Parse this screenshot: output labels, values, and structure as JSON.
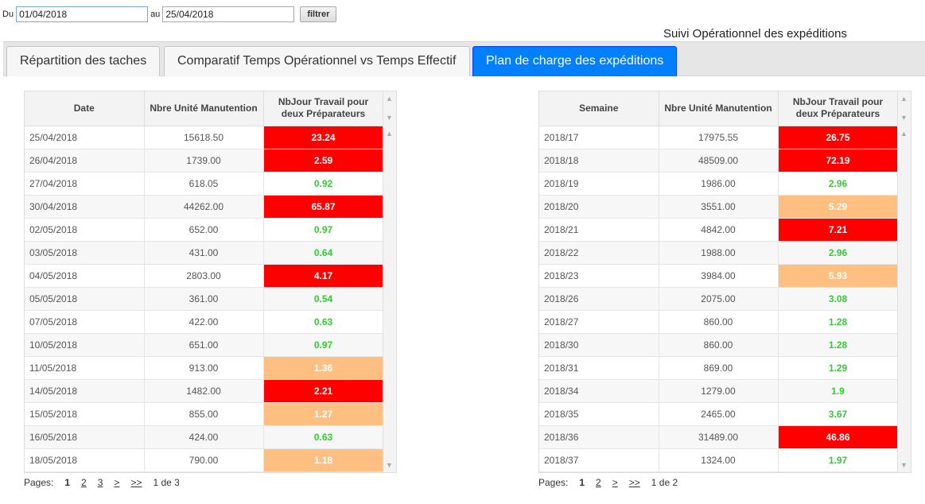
{
  "filter": {
    "from_label": "Du",
    "from_value": "01/04/2018",
    "to_label": "au",
    "to_value": "25/04/2018",
    "button_label": "filtrer"
  },
  "page_title": "Suivi Opérationnel des expéditions",
  "tabs": [
    {
      "label": "Répartition des taches"
    },
    {
      "label": "Comparatif Temps Opérationnel vs Temps Effectif"
    },
    {
      "label": "Plan de charge des expéditions",
      "active": true
    }
  ],
  "colors": {
    "red": "#ff0000",
    "orange": "#ffbf80",
    "green": "#33cc33",
    "active_tab": "#007fff"
  },
  "left_grid": {
    "headers": [
      "Date",
      "Nbre Unité Manutention",
      "NbJour Travail pour deux Préparateurs"
    ],
    "rows": [
      [
        "25/04/2018",
        "15618.50",
        "23.24",
        "red"
      ],
      [
        "26/04/2018",
        "1739.00",
        "2.59",
        "red"
      ],
      [
        "27/04/2018",
        "618.05",
        "0.92",
        "green"
      ],
      [
        "30/04/2018",
        "44262.00",
        "65.87",
        "red"
      ],
      [
        "02/05/2018",
        "652.00",
        "0.97",
        "green"
      ],
      [
        "03/05/2018",
        "431.00",
        "0.64",
        "green"
      ],
      [
        "04/05/2018",
        "2803.00",
        "4.17",
        "red"
      ],
      [
        "05/05/2018",
        "361.00",
        "0.54",
        "green"
      ],
      [
        "07/05/2018",
        "422.00",
        "0.63",
        "green"
      ],
      [
        "10/05/2018",
        "651.00",
        "0.97",
        "green"
      ],
      [
        "11/05/2018",
        "913.00",
        "1.36",
        "orange"
      ],
      [
        "14/05/2018",
        "1482.00",
        "2.21",
        "red"
      ],
      [
        "15/05/2018",
        "855.00",
        "1.27",
        "orange"
      ],
      [
        "16/05/2018",
        "424.00",
        "0.63",
        "green"
      ],
      [
        "18/05/2018",
        "790.00",
        "1.18",
        "orange"
      ]
    ],
    "pager": {
      "label": "Pages:",
      "pages": [
        "1",
        "2",
        "3",
        ">",
        ">>"
      ],
      "current": "1",
      "info": "1 de 3"
    }
  },
  "right_grid": {
    "headers": [
      "Semaine",
      "Nbre Unité Manutention",
      "NbJour Travail pour deux Préparateurs"
    ],
    "rows": [
      [
        "2018/17",
        "17975.55",
        "26.75",
        "red"
      ],
      [
        "2018/18",
        "48509.00",
        "72.19",
        "red"
      ],
      [
        "2018/19",
        "1986.00",
        "2.96",
        "green"
      ],
      [
        "2018/20",
        "3551.00",
        "5.29",
        "orange"
      ],
      [
        "2018/21",
        "4842.00",
        "7.21",
        "red"
      ],
      [
        "2018/22",
        "1988.00",
        "2.96",
        "green"
      ],
      [
        "2018/23",
        "3984.00",
        "5.93",
        "orange"
      ],
      [
        "2018/26",
        "2075.00",
        "3.08",
        "green"
      ],
      [
        "2018/27",
        "860.00",
        "1.28",
        "green"
      ],
      [
        "2018/30",
        "860.00",
        "1.28",
        "green"
      ],
      [
        "2018/31",
        "869.00",
        "1.29",
        "green"
      ],
      [
        "2018/34",
        "1279.00",
        "1.9",
        "green"
      ],
      [
        "2018/35",
        "2465.00",
        "3.67",
        "green"
      ],
      [
        "2018/36",
        "31489.00",
        "46.86",
        "red"
      ],
      [
        "2018/37",
        "1324.00",
        "1.97",
        "green"
      ]
    ],
    "pager": {
      "label": "Pages:",
      "pages": [
        "1",
        "2",
        ">",
        ">>"
      ],
      "current": "1",
      "info": "1 de 2"
    }
  }
}
